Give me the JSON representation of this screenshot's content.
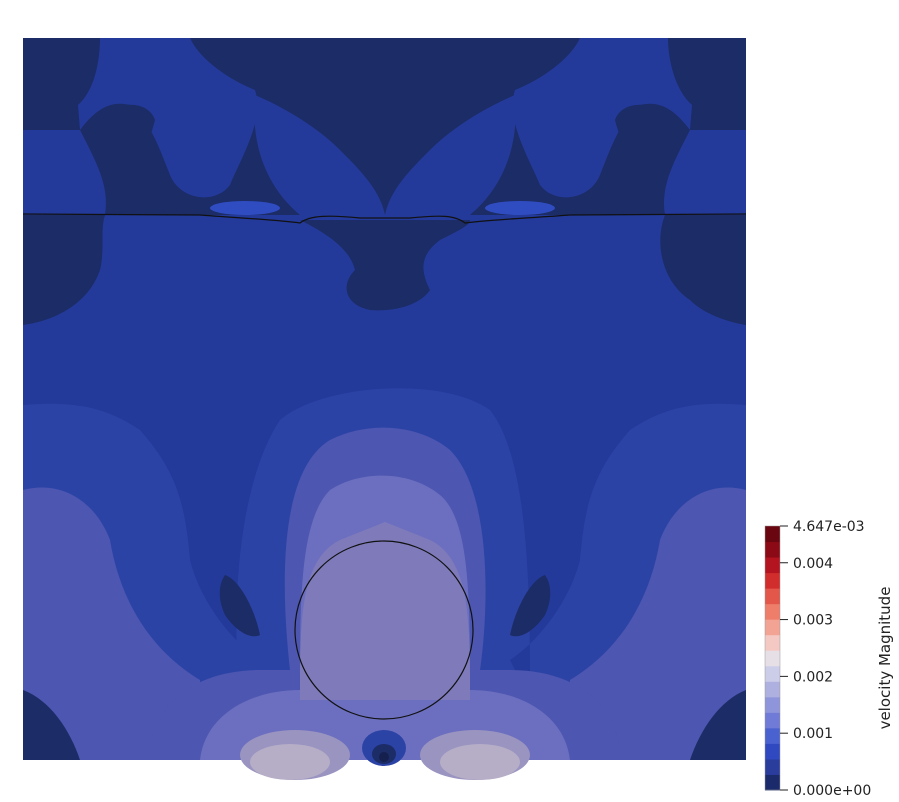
{
  "colorbar": {
    "title": "velocity Magnitude",
    "max_label": "4.647e-03",
    "min_label": "0.000e+00",
    "ticks": [
      {
        "value": 0.004,
        "label": "0.004"
      },
      {
        "value": 0.003,
        "label": "0.003"
      },
      {
        "value": 0.002,
        "label": "0.002"
      },
      {
        "value": 0.001,
        "label": "0.001"
      }
    ],
    "range": [
      0,
      0.004647
    ],
    "bands": [
      "#1b2a6b",
      "#2a3c9c",
      "#3049c0",
      "#4a61d0",
      "#6f7bd6",
      "#8f95da",
      "#aeb0e0",
      "#cccde9",
      "#e6dfe6",
      "#f4c9c4",
      "#f3a393",
      "#ee7d6a",
      "#e2574a",
      "#d12d2d",
      "#b3141f",
      "#8c0a15",
      "#6a0610"
    ]
  },
  "field_colors": {
    "darkest": "#15204f",
    "dark": "#1c2c66",
    "mid": "#233a9a",
    "blue": "#2c43a6",
    "lavender": "#4d56b0",
    "light": "#6c6fbf",
    "pale": "#7f7bbb",
    "palest": "#9a94c0",
    "hot": "#b6adc6"
  }
}
